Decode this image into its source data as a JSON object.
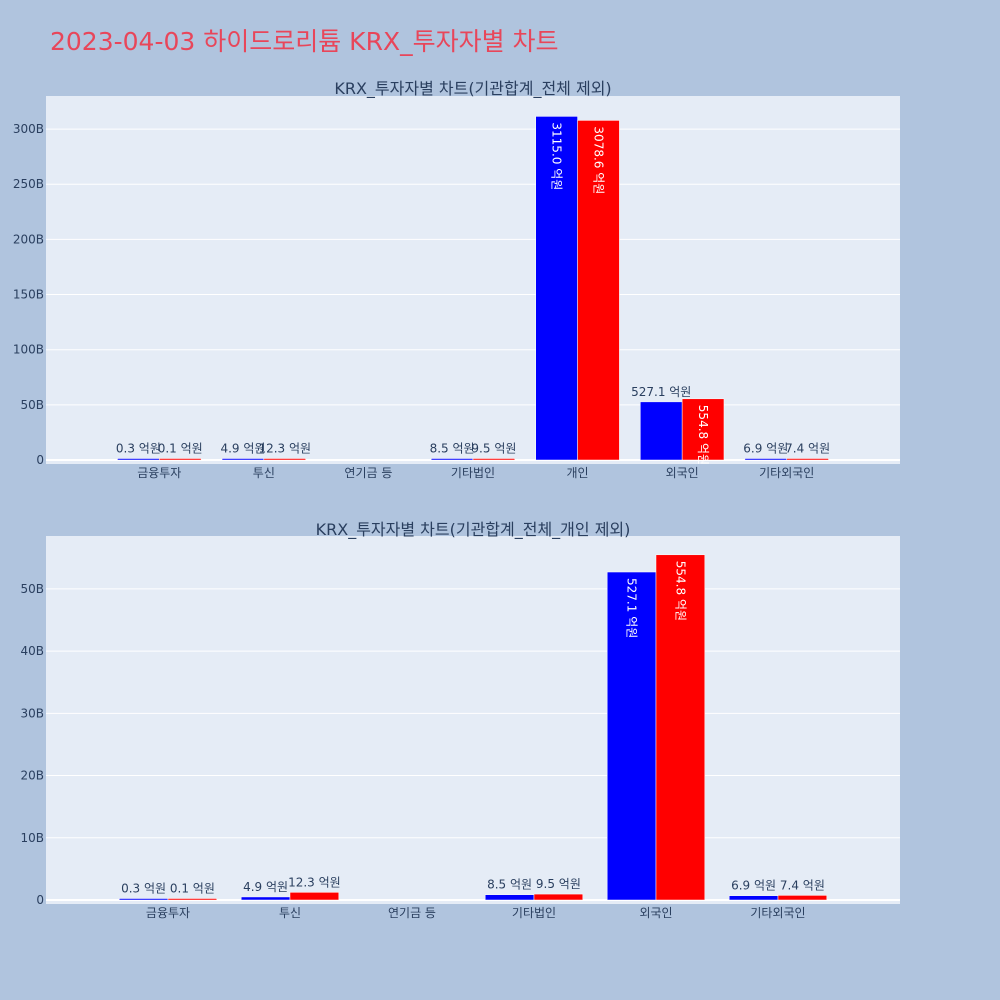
{
  "page": {
    "title": "2023-04-03 하이드로리튬 KRX_투자자별 차트"
  },
  "colors": {
    "buy": "#0000ff",
    "sell": "#ff0000",
    "plot_bg": "#e5ecf6",
    "paper": "#b0c4de",
    "title": "#e8465a",
    "text": "#2a3f5f"
  },
  "chart_data": [
    {
      "type": "bar",
      "title": "KRX_투자자별 차트(기관합계_전체 제외)",
      "categories": [
        "금융투자",
        "투신",
        "연기금 등",
        "기타법인",
        "개인",
        "외국인",
        "기타외국인"
      ],
      "series": [
        {
          "values": [
            0.03,
            0.49,
            0,
            0.85,
            311.5,
            52.71,
            0.69
          ],
          "labels": [
            "0.3 억원",
            "4.9 억원",
            "",
            "8.5 억원",
            "3115.0 억원",
            "527.1 억원",
            "6.9 억원"
          ]
        },
        {
          "values": [
            0.01,
            1.23,
            0,
            0.95,
            307.86,
            55.48,
            0.74
          ],
          "labels": [
            "0.1 억원",
            "12.3 억원",
            "",
            "9.5 억원",
            "3078.6 억원",
            "554.8 억원",
            "7.4 억원"
          ]
        }
      ],
      "yticks": [
        "0",
        "50B",
        "100B",
        "150B",
        "200B",
        "250B",
        "300B"
      ],
      "ytick_values": [
        0,
        50,
        100,
        150,
        200,
        250,
        300
      ],
      "ylim": [
        0,
        330
      ],
      "grid": true
    },
    {
      "type": "bar",
      "title": "KRX_투자자별 차트(기관합계_전체_개인 제외)",
      "categories": [
        "금융투자",
        "투신",
        "연기금 등",
        "기타법인",
        "외국인",
        "기타외국인"
      ],
      "series": [
        {
          "values": [
            0.03,
            0.49,
            0,
            0.85,
            52.71,
            0.69
          ],
          "labels": [
            "0.3 억원",
            "4.9 억원",
            "",
            "8.5 억원",
            "527.1 억원",
            "6.9 억원"
          ]
        },
        {
          "values": [
            0.01,
            1.23,
            0,
            0.95,
            55.48,
            0.74
          ],
          "labels": [
            "0.1 억원",
            "12.3 억원",
            "",
            "9.5 억원",
            "554.8 억원",
            "7.4 억원"
          ]
        }
      ],
      "yticks": [
        "0",
        "10B",
        "20B",
        "30B",
        "40B",
        "50B"
      ],
      "ytick_values": [
        0,
        10,
        20,
        30,
        40,
        50
      ],
      "ylim": [
        0,
        58.5
      ],
      "grid": true
    }
  ]
}
